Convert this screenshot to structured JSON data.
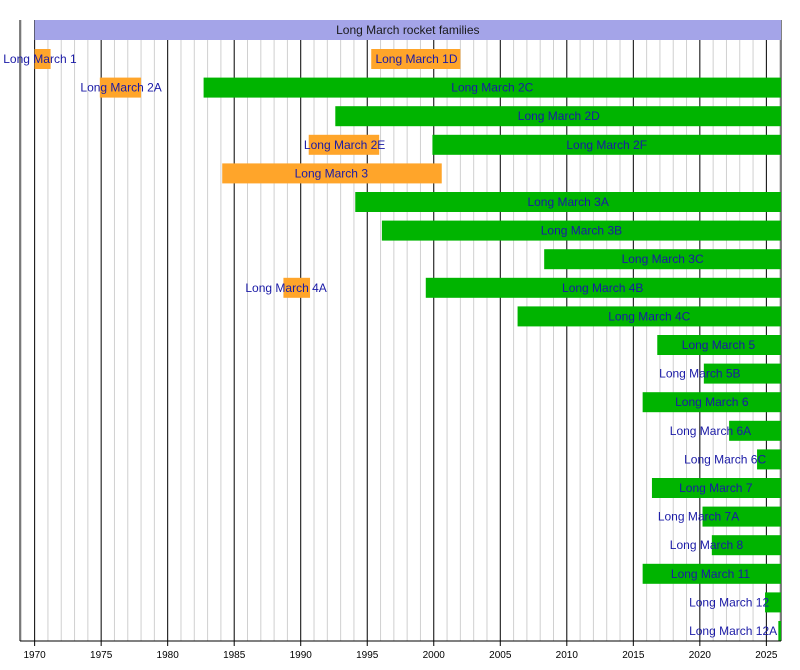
{
  "chart_data": {
    "type": "timeline",
    "title": "Long March rocket families",
    "x_range": [
      1968.9,
      2026.1
    ],
    "x_ticks": [
      1970,
      1975,
      1980,
      1985,
      1990,
      1995,
      2000,
      2005,
      2010,
      2015,
      2020,
      2025
    ],
    "x_tick_labels": [
      "1970",
      "1975",
      "1980",
      "1985",
      "1990",
      "1995",
      "2000",
      "2005",
      "2010",
      "2015",
      "2020",
      "2025"
    ],
    "colors": {
      "retired": "#ffa52a",
      "active": "#00b400",
      "header": "#a4a4e8",
      "label": "#1a1aa6"
    },
    "legend": "none",
    "rows": [
      {
        "label": "Long March 1",
        "bars": [
          {
            "start": 1970.0,
            "end": 1971.2,
            "status": "retired"
          }
        ],
        "label_at": 1970.4
      },
      {
        "label": "Long March 1D",
        "bars": [
          {
            "start": 1995.3,
            "end": 2002.0,
            "status": "retired"
          }
        ],
        "label_at": 1998.7
      },
      {
        "label": "Long March 2A",
        "bars": [
          {
            "start": 1974.9,
            "end": 1978.0,
            "status": "retired"
          }
        ],
        "label_at": 1976.5
      },
      {
        "label": "Long March 2C",
        "bars": [
          {
            "start": 1982.7,
            "end": 2026.1,
            "status": "active"
          }
        ],
        "label_at": 2004.4
      },
      {
        "label": "Long March 2D",
        "bars": [
          {
            "start": 1992.6,
            "end": 2026.1,
            "status": "active"
          }
        ],
        "label_at": 2009.4
      },
      {
        "label": "Long March 2E",
        "bars": [
          {
            "start": 1990.6,
            "end": 1995.9,
            "status": "retired"
          }
        ],
        "label_at": 1993.3
      },
      {
        "label": "Long March 2F",
        "bars": [
          {
            "start": 1999.9,
            "end": 2026.1,
            "status": "active"
          }
        ],
        "label_at": 2013.0
      },
      {
        "label": "Long March 3",
        "bars": [
          {
            "start": 1984.1,
            "end": 2000.6,
            "status": "retired"
          }
        ],
        "label_at": 1992.3
      },
      {
        "label": "Long March 3A",
        "bars": [
          {
            "start": 1994.1,
            "end": 2026.1,
            "status": "active"
          }
        ],
        "label_at": 2010.1
      },
      {
        "label": "Long March 3B",
        "bars": [
          {
            "start": 1996.1,
            "end": 2026.1,
            "status": "active"
          }
        ],
        "label_at": 2011.1
      },
      {
        "label": "Long March 3C",
        "bars": [
          {
            "start": 2008.3,
            "end": 2026.1,
            "status": "active"
          }
        ],
        "label_at": 2017.2
      },
      {
        "label": "Long March 4A",
        "bars": [
          {
            "start": 1988.7,
            "end": 1990.7,
            "status": "retired"
          }
        ],
        "label_at": 1988.9
      },
      {
        "label": "Long March 4B",
        "bars": [
          {
            "start": 1999.4,
            "end": 2026.1,
            "status": "active"
          }
        ],
        "label_at": 2012.7
      },
      {
        "label": "Long March 4C",
        "bars": [
          {
            "start": 2006.3,
            "end": 2026.1,
            "status": "active"
          }
        ],
        "label_at": 2016.2
      },
      {
        "label": "Long March 5",
        "bars": [
          {
            "start": 2016.8,
            "end": 2026.1,
            "status": "active"
          }
        ],
        "label_at": 2021.4
      },
      {
        "label": "Long March 5B",
        "bars": [
          {
            "start": 2020.3,
            "end": 2026.1,
            "status": "active"
          }
        ],
        "label_at": 2020.0
      },
      {
        "label": "Long March 6",
        "bars": [
          {
            "start": 2015.7,
            "end": 2026.1,
            "status": "active"
          }
        ],
        "label_at": 2020.9
      },
      {
        "label": "Long March 6A",
        "bars": [
          {
            "start": 2022.2,
            "end": 2026.1,
            "status": "active"
          }
        ],
        "label_at": 2020.8
      },
      {
        "label": "Long March 6C",
        "bars": [
          {
            "start": 2024.3,
            "end": 2026.1,
            "status": "active"
          }
        ],
        "label_at": 2021.9
      },
      {
        "label": "Long March 7",
        "bars": [
          {
            "start": 2016.4,
            "end": 2026.1,
            "status": "active"
          }
        ],
        "label_at": 2021.2
      },
      {
        "label": "Long March 7A",
        "bars": [
          {
            "start": 2020.2,
            "end": 2026.1,
            "status": "active"
          }
        ],
        "label_at": 2019.9
      },
      {
        "label": "Long March 8",
        "bars": [
          {
            "start": 2020.9,
            "end": 2026.1,
            "status": "active"
          }
        ],
        "label_at": 2020.5
      },
      {
        "label": "Long March 11",
        "bars": [
          {
            "start": 2015.7,
            "end": 2026.1,
            "status": "active"
          }
        ],
        "label_at": 2020.8
      },
      {
        "label": "Long March 12",
        "bars": [
          {
            "start": 2024.9,
            "end": 2026.1,
            "status": "active"
          }
        ],
        "label_at": 2022.2
      },
      {
        "label": "Long March 12A",
        "bars": [
          {
            "start": 2025.9,
            "end": 2026.1,
            "status": "active"
          }
        ],
        "label_at": 2022.5
      }
    ],
    "row_lanes": [
      1,
      1,
      2,
      2,
      3,
      4,
      4,
      5,
      6,
      7,
      8,
      9,
      9,
      10,
      11,
      12,
      13,
      14,
      15,
      16,
      17,
      18,
      19,
      20,
      21
    ]
  }
}
